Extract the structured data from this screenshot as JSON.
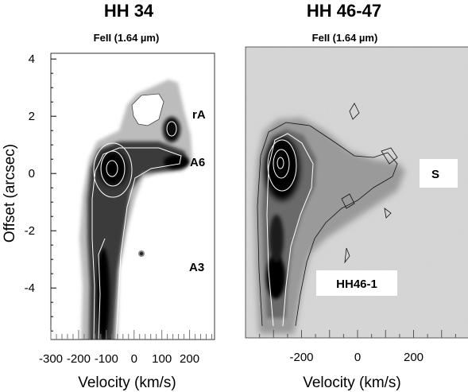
{
  "chart_data": [
    {
      "type": "heatmap",
      "title": "HH 34",
      "subtitle": "FeII (1.64 µm)",
      "xlabel": "Velocity (km/s)",
      "ylabel": "Offset (arcsec)",
      "xlim": [
        -300,
        290
      ],
      "ylim": [
        -5.8,
        4.2
      ],
      "xticks": [
        -300,
        -200,
        -100,
        0,
        100,
        200
      ],
      "xtick_labels": [
        "-300",
        "-200",
        "-100",
        "0",
        "100",
        "200"
      ],
      "yticks": [
        4,
        2,
        0,
        -2,
        -4
      ],
      "ytick_labels": [
        "4",
        "2",
        "0",
        "-2",
        "-4"
      ],
      "colormap": "grayscale (inverted)",
      "annotations": [
        {
          "text": "rA",
          "velocity": 170,
          "offset": 1.9
        },
        {
          "text": "A6",
          "velocity": 215,
          "offset": 0.35
        },
        {
          "text": "A3",
          "velocity": 175,
          "offset": -3.3
        }
      ],
      "emission": [
        {
          "component": "jet knot peak",
          "velocity": -75,
          "offset": 0.1
        },
        {
          "component": "jet stem",
          "velocity": -70,
          "offset": -4.5
        },
        {
          "component": "rA knot",
          "velocity": 135,
          "offset": 1.5
        },
        {
          "component": "A6 knot",
          "velocity": 180,
          "offset": 0.3
        }
      ]
    },
    {
      "type": "heatmap",
      "title": "HH 46-47",
      "subtitle": "FeII (1.64 µm)",
      "xlabel": "Velocity (km/s)",
      "ylabel": "",
      "xlim": [
        -400,
        400
      ],
      "ylim": [
        -5.8,
        4.2
      ],
      "xticks": [
        -200,
        0,
        200
      ],
      "xtick_labels": [
        "-200",
        "0",
        "200"
      ],
      "colormap": "grayscale (inverted)",
      "annotations": [
        {
          "text": "S",
          "velocity": 315,
          "offset": 0
        },
        {
          "text": "HH46-1",
          "velocity": -110,
          "offset": -3.8
        }
      ],
      "emission": [
        {
          "component": "main knot peak",
          "velocity": -255,
          "offset": 0.2
        },
        {
          "component": "HH46-1 knot",
          "velocity": -265,
          "offset": -3.7
        }
      ]
    }
  ]
}
